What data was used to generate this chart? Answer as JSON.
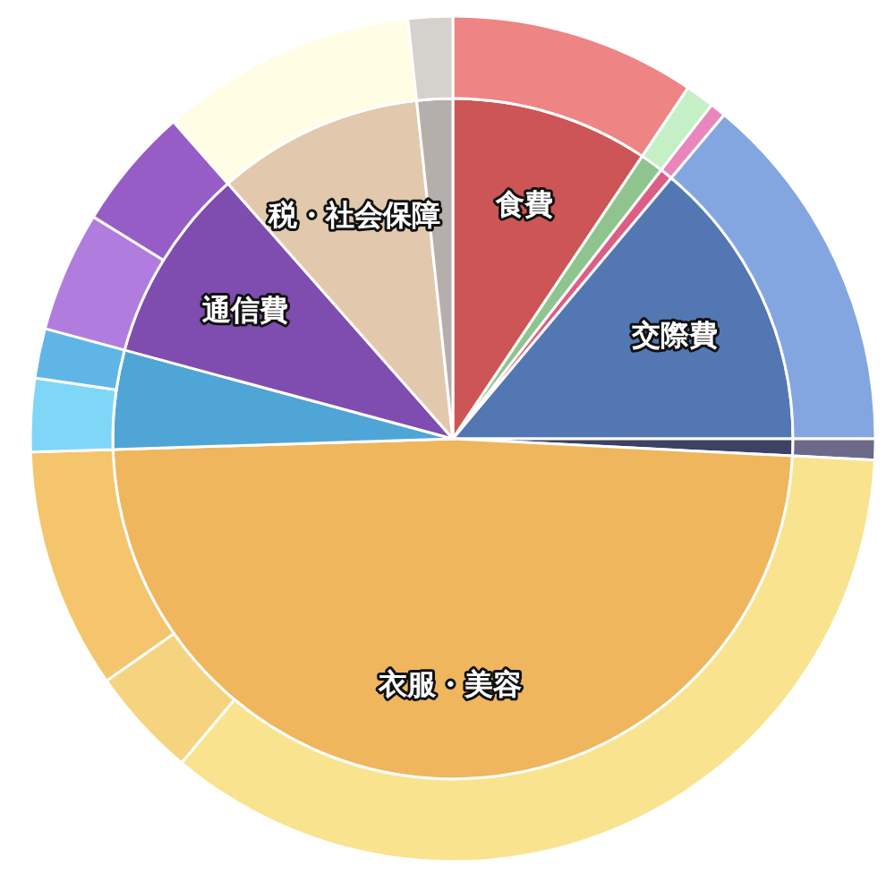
{
  "chart_data": [
    {
      "type": "pie",
      "categories": [
        "食費",
        null,
        null,
        "交際費",
        null,
        "衣服・美容",
        null,
        "通信費",
        "税・社会保障",
        null
      ],
      "values": [
        9.4,
        1.1,
        0.6,
        13.9,
        0.8,
        48.7,
        4.7,
        9.3,
        9.8,
        1.7
      ],
      "colors": [
        "#cd5556",
        "#8fc48f",
        "#dc5d86",
        "#5277b3",
        "#3d4163",
        "#efb65e",
        "#4fa6d6",
        "#7f4caf",
        "#e2c9ad",
        "#b4afab"
      ]
    },
    {
      "type": "donut",
      "categories": [
        null,
        null,
        null,
        null,
        null,
        null,
        null,
        null,
        null,
        null,
        null,
        null,
        null,
        null
      ],
      "values": [
        9.4,
        1.1,
        0.6,
        13.9,
        0.8,
        35.3,
        4.2,
        9.2,
        2.8,
        1.9,
        4.6,
        4.7,
        9.8,
        1.7
      ],
      "colors": [
        "#ee8484",
        "#c5efc5",
        "#e986bd",
        "#84a6e0",
        "#6c6a88",
        "#f9e38e",
        "#f6d47f",
        "#f4c56c",
        "#7fd7f8",
        "#5fb6e6",
        "#b07ddf",
        "#975dc7",
        "#fffde4",
        "#d5d1cd"
      ]
    }
  ]
}
